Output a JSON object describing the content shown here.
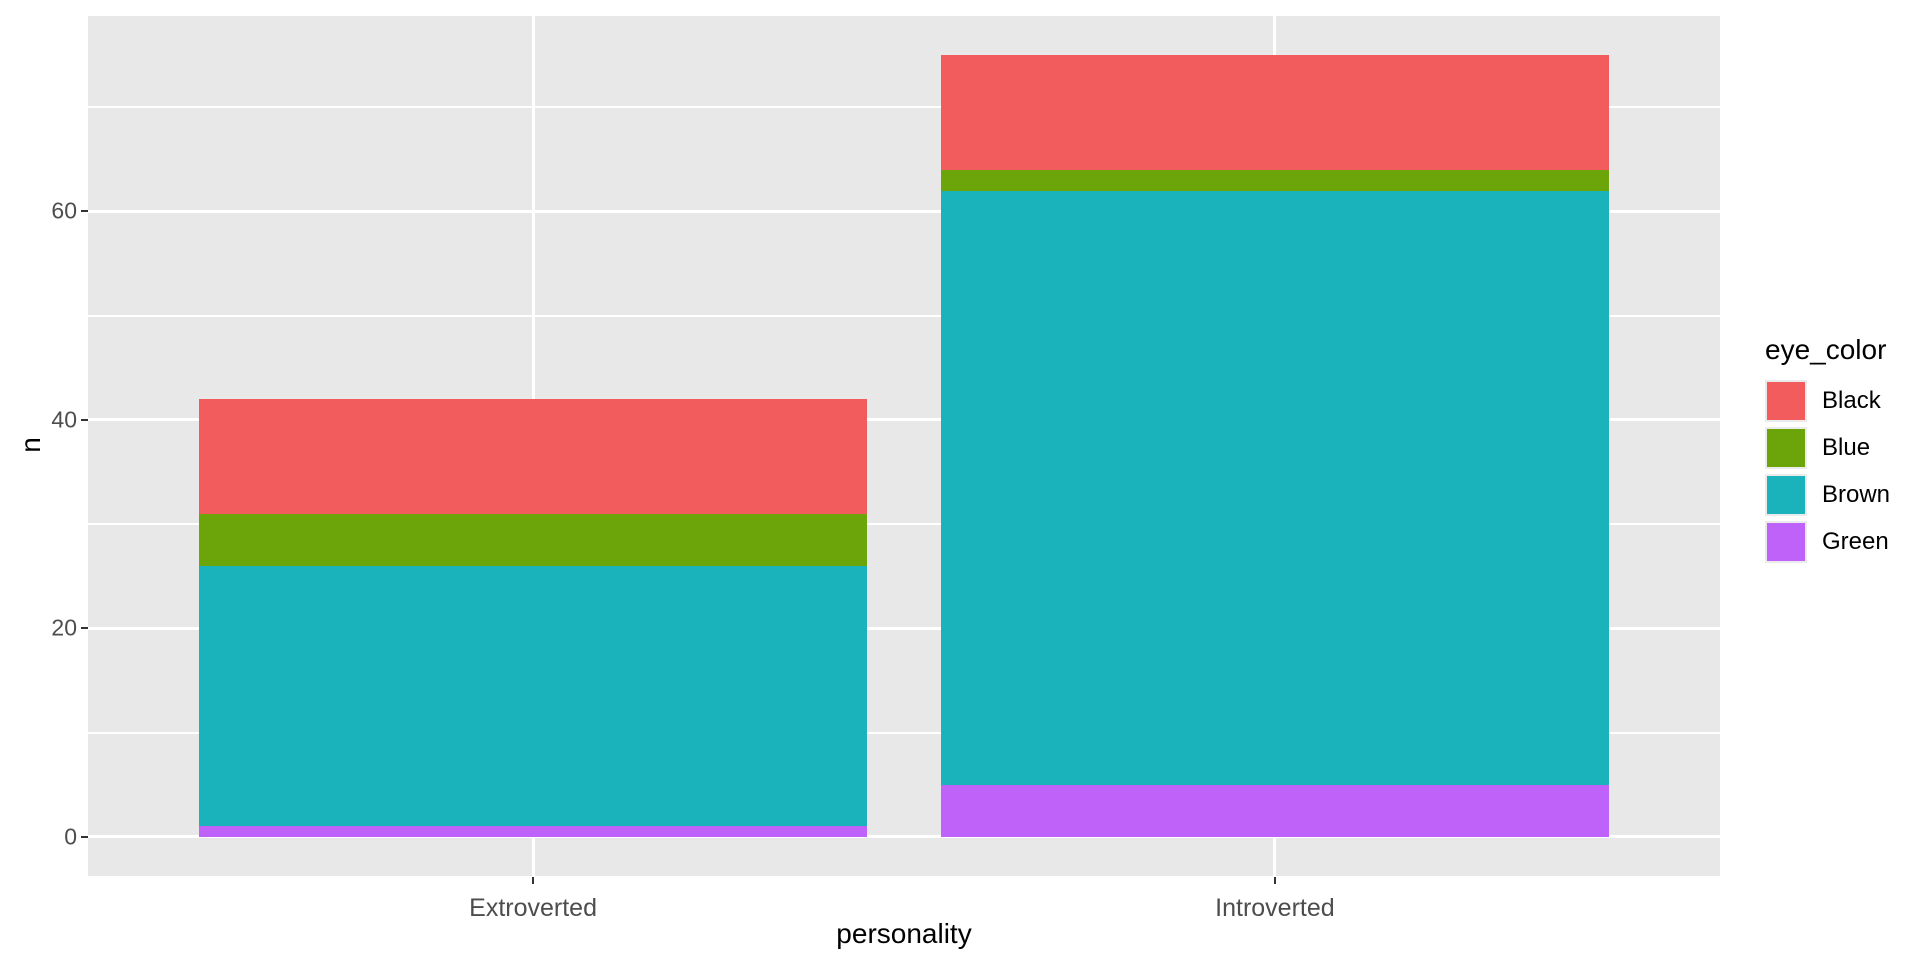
{
  "chart_data": {
    "type": "bar",
    "stacked": true,
    "xlabel": "personality",
    "ylabel": "n",
    "categories": [
      "Extroverted",
      "Introverted"
    ],
    "series": [
      {
        "name": "Black",
        "color": "#F25C5C",
        "values": [
          11,
          11
        ]
      },
      {
        "name": "Blue",
        "color": "#6CA50A",
        "values": [
          5,
          2
        ]
      },
      {
        "name": "Brown",
        "color": "#1AB3BC",
        "values": [
          25,
          57
        ]
      },
      {
        "name": "Green",
        "color": "#BE62F9",
        "values": [
          1,
          5
        ]
      }
    ],
    "stack_order_bottom_to_top": [
      "Green",
      "Brown",
      "Blue",
      "Black"
    ],
    "totals": [
      42,
      75
    ],
    "y_ticks": [
      0,
      20,
      40,
      60
    ],
    "y_minor_gridlines": [
      10,
      30,
      50,
      70
    ],
    "ylim": [
      -3.75,
      78.75
    ],
    "legend": {
      "title": "eye_color",
      "position": "right",
      "entries": [
        "Black",
        "Blue",
        "Brown",
        "Green"
      ]
    },
    "grid": true,
    "colors": {
      "panel_background": "#E8E8E8",
      "gridline": "#FFFFFF",
      "tick_label": "#4D4D4D",
      "tick_mark": "#333333",
      "axis_title": "#000000",
      "page_background": "#FFFFFF"
    }
  }
}
